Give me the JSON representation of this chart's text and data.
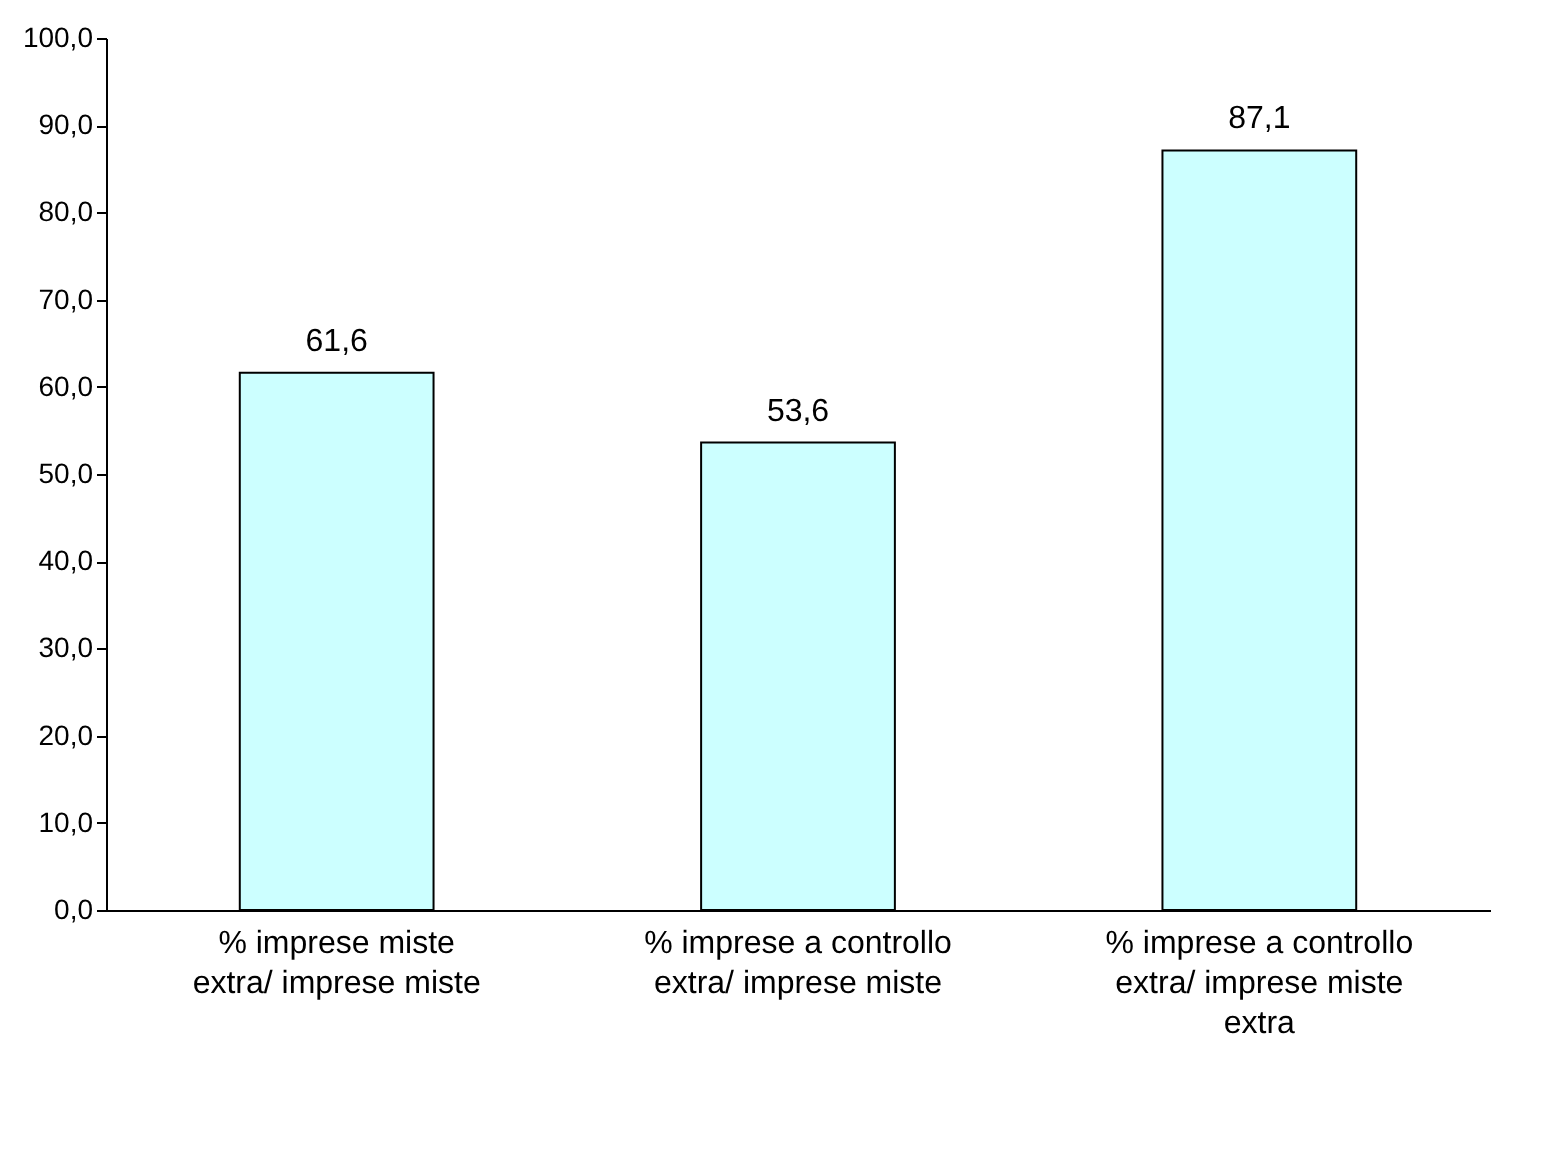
{
  "chart_data": {
    "type": "bar",
    "categories": [
      "% imprese miste extra/ imprese miste",
      "% imprese a controllo extra/ imprese miste",
      "% imprese a controllo extra/ imprese miste extra"
    ],
    "values": [
      61.6,
      53.6,
      87.1
    ],
    "value_labels": [
      "61,6",
      "53,6",
      "87,1"
    ],
    "color": "#ccffff",
    "ylim": [
      0,
      100
    ],
    "yticks": [
      {
        "value": 0,
        "label": "0,0"
      },
      {
        "value": 10,
        "label": "10,0"
      },
      {
        "value": 20,
        "label": "20,0"
      },
      {
        "value": 30,
        "label": "30,0"
      },
      {
        "value": 40,
        "label": "40,0"
      },
      {
        "value": 50,
        "label": "50,0"
      },
      {
        "value": 60,
        "label": "60,0"
      },
      {
        "value": 70,
        "label": "70,0"
      },
      {
        "value": 80,
        "label": "80,0"
      },
      {
        "value": 90,
        "label": "90,0"
      },
      {
        "value": 100,
        "label": "100,0"
      }
    ],
    "grid": false
  }
}
